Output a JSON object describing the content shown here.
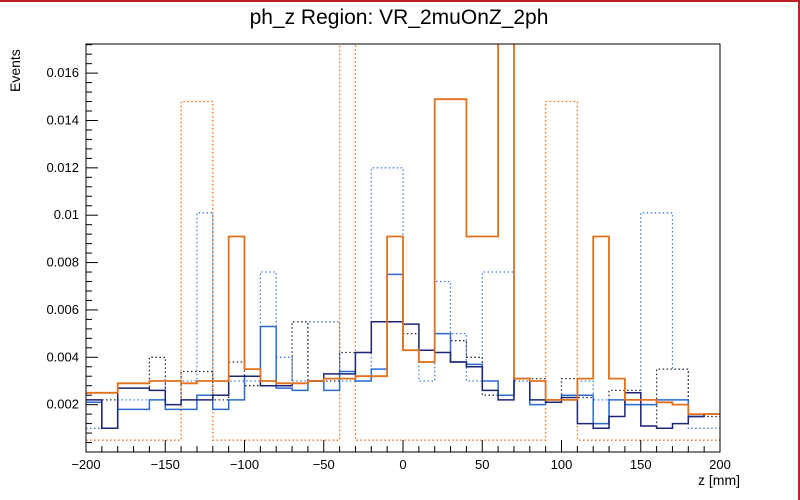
{
  "title": "ph_z Region: VR_2muOnZ_2ph",
  "frame": {
    "border_color": "#bf2026",
    "axis_color": "#000000",
    "background": "#ffffff"
  },
  "chart_data": {
    "type": "histogram-step",
    "title": "ph_z Region: VR_2muOnZ_2ph",
    "xlabel": "z [mm]",
    "ylabel": "Events",
    "xlim": [
      -200,
      200
    ],
    "ylim": [
      0,
      0.01723
    ],
    "x_tick_values": [
      -200,
      -150,
      -100,
      -50,
      0,
      50,
      100,
      150,
      200
    ],
    "x_tick_labels": [
      "−200",
      "−150",
      "−100",
      "−50",
      "0",
      "50",
      "100",
      "150",
      "200"
    ],
    "y_tick_values": [
      0.002,
      0.004,
      0.006,
      0.008,
      0.01,
      0.012,
      0.014,
      0.016
    ],
    "y_tick_labels": [
      "0.002",
      "0.004",
      "0.006",
      "0.008",
      "0.01",
      "0.012",
      "0.014",
      "0.016"
    ],
    "x_minor_step": 10,
    "y_minor_step": 0.0004,
    "grid": false,
    "legend": "none",
    "bin_edges": [
      -200,
      -190,
      -180,
      -170,
      -160,
      -150,
      -140,
      -130,
      -120,
      -110,
      -100,
      -90,
      -80,
      -70,
      -60,
      -50,
      -40,
      -30,
      -20,
      -10,
      0,
      10,
      20,
      30,
      40,
      50,
      60,
      70,
      80,
      90,
      100,
      110,
      120,
      130,
      140,
      150,
      160,
      170,
      180,
      190,
      200
    ],
    "series": [
      {
        "name": "hist-orange-dotted",
        "color": "#e2711d",
        "line_style": "dotted",
        "values": [
          0.0005,
          0.0005,
          0.0005,
          0.0005,
          0.0005,
          0.0005,
          0.0148,
          0.0148,
          0.0005,
          0.0005,
          0.0005,
          0.0005,
          0.0005,
          0.0005,
          0.0005,
          0.0005,
          0.019,
          0.0005,
          0.0005,
          0.0005,
          0.0005,
          0.0005,
          0.0005,
          0.0005,
          0.0005,
          0.0005,
          0.0005,
          0.0005,
          0.0005,
          0.0148,
          0.0148,
          0.0005,
          0.0005,
          0.0005,
          0.0005,
          0.0005,
          0.0005,
          0.0005,
          0.0005,
          0.0005
        ]
      },
      {
        "name": "hist-blue-dotted",
        "color": "#3f7fd4",
        "line_style": "dotted",
        "values": [
          0.001,
          0.001,
          0.0022,
          0.0022,
          0.0022,
          0.003,
          0.003,
          0.0101,
          0.003,
          0.003,
          0.003,
          0.0076,
          0.004,
          0.003,
          0.0055,
          0.0055,
          0.003,
          0.003,
          0.012,
          0.012,
          0.0043,
          0.003,
          0.0072,
          0.005,
          0.003,
          0.0076,
          0.0076,
          0.003,
          0.0022,
          0.0022,
          0.0022,
          0.003,
          0.0022,
          0.0022,
          0.0022,
          0.0101,
          0.0101,
          0.0035,
          0.001,
          0.001
        ]
      },
      {
        "name": "hist-dark-dotted",
        "color": "#2b2b3a",
        "line_style": "dotted",
        "values": [
          0.0022,
          0.0022,
          0.0027,
          0.0027,
          0.004,
          0.002,
          0.0034,
          0.0034,
          0.0022,
          0.0038,
          0.0028,
          0.0028,
          0.0028,
          0.0055,
          0.003,
          0.003,
          0.0042,
          0.0042,
          0.0055,
          0.0055,
          0.005,
          0.0038,
          0.005,
          0.0047,
          0.004,
          0.0024,
          0.0024,
          0.0031,
          0.0031,
          0.0022,
          0.0031,
          0.0023,
          0.0012,
          0.0026,
          0.0026,
          0.0011,
          0.0035,
          0.0035,
          0.0015,
          0.0015
        ]
      },
      {
        "name": "hist-blue-solid",
        "color": "#2b6bd0",
        "line_style": "solid",
        "values": [
          0.0021,
          0.001,
          0.0018,
          0.0018,
          0.0022,
          0.0018,
          0.0018,
          0.0024,
          0.0018,
          0.0022,
          0.0032,
          0.0053,
          0.0027,
          0.0026,
          0.003,
          0.0026,
          0.0034,
          0.003,
          0.0035,
          0.0075,
          0.0043,
          0.0043,
          0.005,
          0.0038,
          0.0037,
          0.003,
          0.0024,
          0.0031,
          0.002,
          0.0022,
          0.0024,
          0.0024,
          0.0012,
          0.0022,
          0.002,
          0.002,
          0.0022,
          0.0022,
          0.0015,
          0.0016
        ]
      },
      {
        "name": "hist-navy-solid",
        "color": "#1c2674",
        "line_style": "solid",
        "values": [
          0.0022,
          0.001,
          0.0027,
          0.0027,
          0.0026,
          0.002,
          0.0022,
          0.0022,
          0.0024,
          0.0032,
          0.0032,
          0.0028,
          0.0028,
          0.0029,
          0.003,
          0.0033,
          0.0033,
          0.0042,
          0.0055,
          0.0055,
          0.0054,
          0.0043,
          0.0042,
          0.0038,
          0.0036,
          0.0026,
          0.0022,
          0.0031,
          0.0022,
          0.0021,
          0.0023,
          0.0012,
          0.001,
          0.0015,
          0.0025,
          0.0011,
          0.001,
          0.0012,
          0.0015,
          0.0016
        ]
      },
      {
        "name": "hist-orange-solid",
        "color": "#e2711d",
        "line_style": "solid",
        "values": [
          0.0025,
          0.0025,
          0.0029,
          0.0029,
          0.003,
          0.003,
          0.0029,
          0.003,
          0.003,
          0.0091,
          0.0035,
          0.003,
          0.0029,
          0.0029,
          0.003,
          0.0031,
          0.0031,
          0.0032,
          0.0032,
          0.0091,
          0.0043,
          0.0038,
          0.0149,
          0.0149,
          0.0091,
          0.0091,
          0.019,
          0.0031,
          0.003,
          0.0022,
          0.0022,
          0.0031,
          0.0091,
          0.0031,
          0.0022,
          0.0022,
          0.0021,
          0.002,
          0.0016,
          0.0016
        ]
      }
    ]
  }
}
